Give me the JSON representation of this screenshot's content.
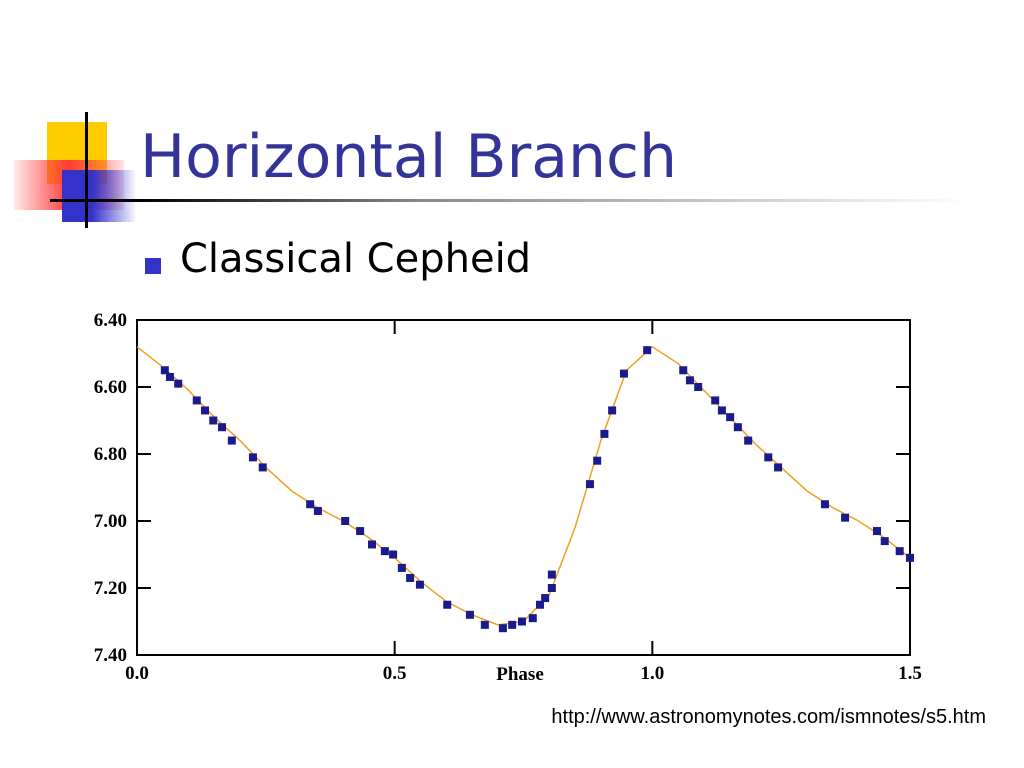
{
  "slide": {
    "title": "Horizontal Branch",
    "bullets": [
      "Classical Cepheid"
    ],
    "source": "http://www.astronomynotes.com/ismnotes/s5.htm"
  },
  "chart_data": {
    "type": "scatter",
    "xlabel": "Phase",
    "xlim": [
      0,
      1.5
    ],
    "xticks": [
      {
        "value": 0,
        "label": "0.0"
      },
      0.5,
      {
        "value": 1,
        "label": "1.0"
      },
      1.5
    ],
    "ylim": [
      7.4,
      6.4
    ],
    "yticks": [
      {
        "value": 6.4,
        "label": "6.40"
      },
      {
        "value": 6.6,
        "label": "6.60"
      },
      {
        "value": 6.8,
        "label": "6.80"
      },
      {
        "value": 7.0,
        "label": "7.00"
      },
      {
        "value": 7.2,
        "label": "7.20"
      },
      {
        "value": 7.4,
        "label": "7.40"
      }
    ],
    "series": [
      {
        "type": "line",
        "color": "#f0a020",
        "x": [
          0,
          0.05,
          0.1,
          0.15,
          0.2,
          0.25,
          0.3,
          0.35,
          0.4,
          0.45,
          0.5,
          0.55,
          0.6,
          0.65,
          0.7,
          0.75,
          0.8,
          0.85,
          0.9,
          0.95,
          1,
          1.05,
          1.1,
          1.15,
          1.2,
          1.25,
          1.3,
          1.35,
          1.4,
          1.45,
          1.5
        ],
        "values": [
          6.48,
          6.54,
          6.61,
          6.69,
          6.76,
          6.84,
          6.91,
          6.96,
          7.0,
          7.05,
          7.11,
          7.18,
          7.24,
          7.28,
          7.31,
          7.3,
          7.22,
          7.02,
          6.76,
          6.55,
          6.48,
          6.53,
          6.61,
          6.69,
          6.77,
          6.84,
          6.91,
          6.96,
          7.0,
          7.05,
          7.11
        ]
      },
      {
        "type": "scatter",
        "color": "#1a1a8c",
        "x": [
          0.054,
          0.064,
          0.08,
          0.116,
          0.132,
          0.148,
          0.165,
          0.184,
          0.225,
          0.244,
          0.336,
          0.351,
          0.404,
          0.433,
          0.456,
          0.481,
          0.497,
          0.514,
          0.53,
          0.549,
          0.602,
          0.646,
          0.675,
          0.71,
          0.728,
          0.747,
          0.768,
          0.782,
          0.792,
          0.805,
          0.805,
          0.879,
          0.893,
          0.907,
          0.922,
          0.945,
          0.99,
          1.06,
          1.073,
          1.089,
          1.122,
          1.135,
          1.151,
          1.166,
          1.186,
          1.225,
          1.244,
          1.335,
          1.374,
          1.436,
          1.451,
          1.48,
          1.5
        ],
        "values": [
          6.55,
          6.57,
          6.59,
          6.64,
          6.67,
          6.7,
          6.72,
          6.76,
          6.81,
          6.84,
          6.95,
          6.97,
          7.0,
          7.03,
          7.07,
          7.09,
          7.1,
          7.14,
          7.17,
          7.19,
          7.25,
          7.28,
          7.31,
          7.32,
          7.31,
          7.3,
          7.29,
          7.25,
          7.23,
          7.2,
          7.16,
          6.89,
          6.82,
          6.74,
          6.67,
          6.56,
          6.49,
          6.55,
          6.58,
          6.6,
          6.64,
          6.67,
          6.69,
          6.72,
          6.76,
          6.81,
          6.84,
          6.95,
          6.99,
          7.03,
          7.06,
          7.09,
          7.11
        ]
      }
    ]
  }
}
